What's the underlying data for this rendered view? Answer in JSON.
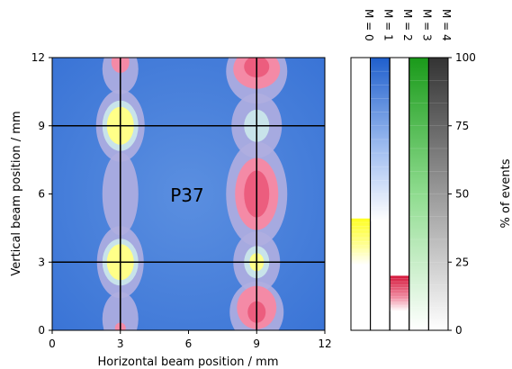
{
  "chart_data": {
    "type": "heatmap",
    "panel_label": "P37",
    "xlabel": "Horizontal beam position / mm",
    "ylabel": "Vertical beam position / mm",
    "xlim": [
      0,
      12
    ],
    "ylim": [
      0,
      12
    ],
    "xticks": [
      0,
      3,
      6,
      9,
      12
    ],
    "yticks": [
      0,
      3,
      6,
      9,
      12
    ],
    "grid_lines": {
      "x": [
        3,
        9
      ],
      "y": [
        3,
        9
      ]
    },
    "multiplicity_classes": [
      "M = 0",
      "M = 1",
      "M = 2",
      "M = 3",
      "M = 4"
    ],
    "class_colors": [
      "#ffff33",
      "#2a66cc",
      "#e8204a",
      "#22aa22",
      "#333333"
    ],
    "colorbar_label": "% of events",
    "colorbar_ticks": [
      0,
      25,
      50,
      75,
      100
    ],
    "colorbar_ranges": [
      {
        "class": "M = 0",
        "from": 24,
        "to": 41
      },
      {
        "class": "M = 1",
        "from": 40,
        "to": 100
      },
      {
        "class": "M = 2",
        "from": 7,
        "to": 20
      },
      {
        "class": "M = 3",
        "from": 0,
        "to": 100
      },
      {
        "class": "M = 4",
        "from": 0,
        "to": 100
      }
    ],
    "dominant_regions": [
      {
        "class": "M = 0",
        "x": 3,
        "y": 9,
        "description": "yellow maximum on column x=3"
      },
      {
        "class": "M = 0",
        "x": 3,
        "y": 3,
        "description": "yellow maximum on column x=3"
      },
      {
        "class": "M = 0",
        "x": 9,
        "y": 3,
        "description": "small yellow spot"
      },
      {
        "class": "M = 2",
        "x": 9,
        "y": 6,
        "description": "red maximum on column x=9"
      },
      {
        "class": "M = 2",
        "x": 9,
        "y": 11.5,
        "description": "red region at top"
      },
      {
        "class": "M = 2",
        "x": 9,
        "y": 1,
        "description": "red region at bottom"
      },
      {
        "class": "M = 2",
        "x": 3,
        "y": 11.8,
        "description": "small red spot at top"
      },
      {
        "class": "M = 1",
        "x": 6,
        "y": 6,
        "description": "blue background"
      }
    ]
  }
}
